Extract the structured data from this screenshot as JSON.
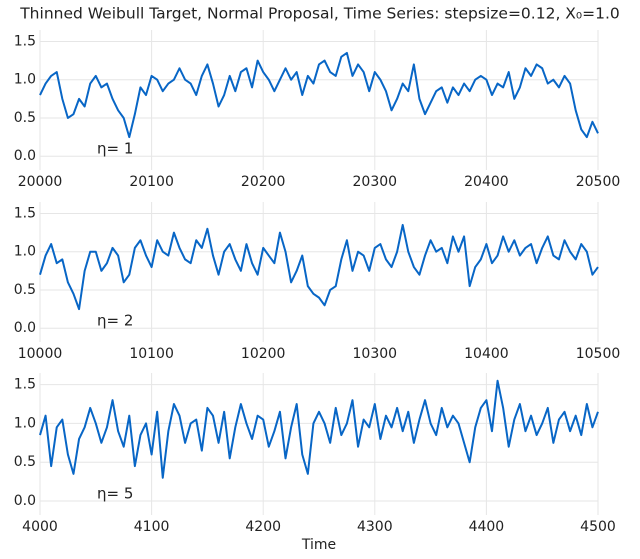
{
  "chart_data": [
    {
      "type": "line",
      "title": "Thinned Weibull Target, Normal Proposal, Time Series: stepsize=0.12, X₀=1.0",
      "annotation": "η= 1",
      "color": "#0866c6",
      "grid": true,
      "xlim": [
        20000,
        20500
      ],
      "xticks": [
        20000,
        20100,
        20200,
        20300,
        20400,
        20500
      ],
      "ylim": [
        -0.18,
        1.65
      ],
      "yticks": [
        {
          "value": 0,
          "label": "0.0"
        },
        0.5,
        {
          "value": 1,
          "label": "1.0"
        },
        1.5
      ],
      "x": [
        20000,
        20005,
        20010,
        20015,
        20020,
        20025,
        20030,
        20035,
        20040,
        20045,
        20050,
        20055,
        20060,
        20065,
        20070,
        20075,
        20080,
        20085,
        20090,
        20095,
        20100,
        20105,
        20110,
        20115,
        20120,
        20125,
        20130,
        20135,
        20140,
        20145,
        20150,
        20155,
        20160,
        20165,
        20170,
        20175,
        20180,
        20185,
        20190,
        20195,
        20200,
        20205,
        20210,
        20215,
        20220,
        20225,
        20230,
        20235,
        20240,
        20245,
        20250,
        20255,
        20260,
        20265,
        20270,
        20275,
        20280,
        20285,
        20290,
        20295,
        20300,
        20305,
        20310,
        20315,
        20320,
        20325,
        20330,
        20335,
        20340,
        20345,
        20350,
        20355,
        20360,
        20365,
        20370,
        20375,
        20380,
        20385,
        20390,
        20395,
        20400,
        20405,
        20410,
        20415,
        20420,
        20425,
        20430,
        20435,
        20440,
        20445,
        20450,
        20455,
        20460,
        20465,
        20470,
        20475,
        20480,
        20485,
        20490,
        20495,
        20500
      ],
      "values": [
        0.8,
        0.95,
        1.05,
        1.1,
        0.75,
        0.5,
        0.55,
        0.75,
        0.65,
        0.95,
        1.05,
        0.9,
        0.95,
        0.75,
        0.6,
        0.5,
        0.25,
        0.55,
        0.9,
        0.8,
        1.05,
        1.0,
        0.85,
        0.95,
        1.0,
        1.15,
        1.0,
        0.95,
        0.8,
        1.05,
        1.2,
        0.95,
        0.65,
        0.8,
        1.05,
        0.85,
        1.1,
        1.15,
        0.9,
        1.25,
        1.1,
        1.0,
        0.85,
        1.0,
        1.15,
        1.0,
        1.1,
        0.8,
        1.05,
        0.95,
        1.2,
        1.25,
        1.1,
        1.05,
        1.3,
        1.35,
        1.05,
        1.2,
        1.1,
        0.85,
        1.1,
        1.0,
        0.85,
        0.6,
        0.75,
        0.95,
        0.85,
        1.2,
        0.75,
        0.55,
        0.7,
        0.85,
        0.9,
        0.7,
        0.9,
        0.8,
        0.95,
        0.85,
        1.0,
        1.05,
        1.0,
        0.8,
        0.95,
        0.9,
        1.1,
        0.75,
        0.9,
        1.15,
        1.05,
        1.2,
        1.15,
        0.95,
        1.0,
        0.9,
        1.05,
        0.95,
        0.6,
        0.35,
        0.25,
        0.45,
        0.3
      ]
    },
    {
      "type": "line",
      "annotation": "η= 2",
      "color": "#0866c6",
      "grid": true,
      "xlim": [
        10000,
        10500
      ],
      "xticks": [
        10000,
        10100,
        10200,
        10300,
        10400,
        10500
      ],
      "ylim": [
        -0.18,
        1.65
      ],
      "yticks": [
        {
          "value": 0,
          "label": "0.0"
        },
        0.5,
        {
          "value": 1,
          "label": "1.0"
        },
        1.5
      ],
      "x": [
        10000,
        10005,
        10010,
        10015,
        10020,
        10025,
        10030,
        10035,
        10040,
        10045,
        10050,
        10055,
        10060,
        10065,
        10070,
        10075,
        10080,
        10085,
        10090,
        10095,
        10100,
        10105,
        10110,
        10115,
        10120,
        10125,
        10130,
        10135,
        10140,
        10145,
        10150,
        10155,
        10160,
        10165,
        10170,
        10175,
        10180,
        10185,
        10190,
        10195,
        10200,
        10205,
        10210,
        10215,
        10220,
        10225,
        10230,
        10235,
        10240,
        10245,
        10250,
        10255,
        10260,
        10265,
        10270,
        10275,
        10280,
        10285,
        10290,
        10295,
        10300,
        10305,
        10310,
        10315,
        10320,
        10325,
        10330,
        10335,
        10340,
        10345,
        10350,
        10355,
        10360,
        10365,
        10370,
        10375,
        10380,
        10385,
        10390,
        10395,
        10400,
        10405,
        10410,
        10415,
        10420,
        10425,
        10430,
        10435,
        10440,
        10445,
        10450,
        10455,
        10460,
        10465,
        10470,
        10475,
        10480,
        10485,
        10490,
        10495,
        10500
      ],
      "values": [
        0.7,
        0.95,
        1.1,
        0.85,
        0.9,
        0.6,
        0.45,
        0.25,
        0.75,
        1.0,
        1.0,
        0.75,
        0.85,
        1.05,
        0.95,
        0.6,
        0.7,
        1.05,
        1.15,
        0.95,
        0.8,
        1.15,
        1.0,
        0.95,
        1.25,
        1.05,
        0.9,
        0.85,
        1.15,
        1.05,
        1.3,
        0.95,
        0.7,
        1.0,
        1.1,
        0.9,
        0.75,
        1.1,
        0.85,
        0.7,
        1.05,
        0.95,
        0.85,
        1.25,
        1.0,
        0.6,
        0.75,
        0.95,
        0.55,
        0.45,
        0.4,
        0.3,
        0.5,
        0.55,
        0.9,
        1.15,
        0.75,
        1.0,
        0.95,
        0.75,
        1.05,
        1.1,
        0.9,
        0.8,
        1.0,
        1.35,
        1.0,
        0.8,
        0.7,
        0.95,
        1.15,
        1.0,
        1.05,
        0.85,
        1.2,
        1.0,
        1.2,
        0.55,
        0.8,
        0.9,
        1.1,
        0.85,
        0.95,
        1.2,
        1.0,
        1.15,
        0.95,
        1.05,
        1.1,
        0.85,
        1.05,
        1.2,
        0.95,
        0.9,
        1.15,
        1.0,
        0.9,
        1.1,
        1.0,
        0.7,
        0.8
      ]
    },
    {
      "type": "line",
      "annotation": "η= 5",
      "xlabel": "Time",
      "color": "#0866c6",
      "grid": true,
      "xlim": [
        4000,
        4500
      ],
      "xticks": [
        4000,
        4100,
        4200,
        4300,
        4400,
        4500
      ],
      "ylim": [
        -0.18,
        1.65
      ],
      "yticks": [
        {
          "value": 0,
          "label": "0.0"
        },
        0.5,
        {
          "value": 1,
          "label": "1.0"
        },
        1.5
      ],
      "x": [
        4000,
        4005,
        4010,
        4015,
        4020,
        4025,
        4030,
        4035,
        4040,
        4045,
        4050,
        4055,
        4060,
        4065,
        4070,
        4075,
        4080,
        4085,
        4090,
        4095,
        4100,
        4105,
        4110,
        4115,
        4120,
        4125,
        4130,
        4135,
        4140,
        4145,
        4150,
        4155,
        4160,
        4165,
        4170,
        4175,
        4180,
        4185,
        4190,
        4195,
        4200,
        4205,
        4210,
        4215,
        4220,
        4225,
        4230,
        4235,
        4240,
        4245,
        4250,
        4255,
        4260,
        4265,
        4270,
        4275,
        4280,
        4285,
        4290,
        4295,
        4300,
        4305,
        4310,
        4315,
        4320,
        4325,
        4330,
        4335,
        4340,
        4345,
        4350,
        4355,
        4360,
        4365,
        4370,
        4375,
        4380,
        4385,
        4390,
        4395,
        4400,
        4405,
        4410,
        4415,
        4420,
        4425,
        4430,
        4435,
        4440,
        4445,
        4450,
        4455,
        4460,
        4465,
        4470,
        4475,
        4480,
        4485,
        4490,
        4495,
        4500
      ],
      "values": [
        0.85,
        1.1,
        0.45,
        0.95,
        1.05,
        0.6,
        0.35,
        0.8,
        0.95,
        1.2,
        1.0,
        0.75,
        0.95,
        1.3,
        0.9,
        0.7,
        1.1,
        0.45,
        0.85,
        1.0,
        0.6,
        1.15,
        0.3,
        0.9,
        1.25,
        1.1,
        0.75,
        1.0,
        1.05,
        0.65,
        1.2,
        1.1,
        0.75,
        1.15,
        0.55,
        0.95,
        1.25,
        1.0,
        0.8,
        1.1,
        1.05,
        0.7,
        0.9,
        1.15,
        0.55,
        0.95,
        1.25,
        0.6,
        0.35,
        1.0,
        1.15,
        1.0,
        0.75,
        1.2,
        0.85,
        1.0,
        1.3,
        0.7,
        1.05,
        0.95,
        1.25,
        0.8,
        1.1,
        0.95,
        1.2,
        0.9,
        1.15,
        0.75,
        1.05,
        1.3,
        1.0,
        0.85,
        1.2,
        0.95,
        1.1,
        1.0,
        0.75,
        0.5,
        0.95,
        1.2,
        1.3,
        0.9,
        1.55,
        1.2,
        0.7,
        1.05,
        1.25,
        0.9,
        1.1,
        0.85,
        1.0,
        1.2,
        0.75,
        1.05,
        1.15,
        0.9,
        1.1,
        0.85,
        1.25,
        0.95,
        1.15
      ]
    }
  ]
}
